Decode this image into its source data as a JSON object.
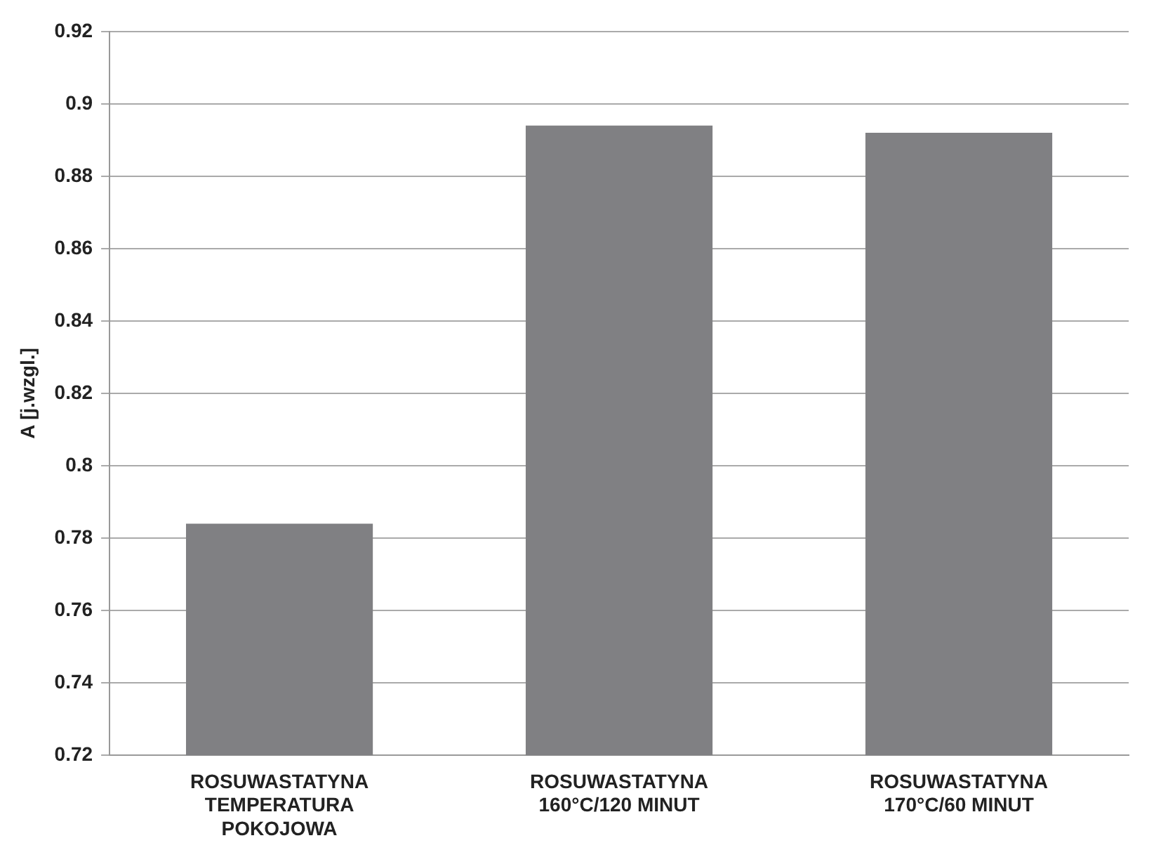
{
  "chart_data": {
    "type": "bar",
    "ylabel": "A [j.wzgl.]",
    "categories": [
      "ROSUWASTATYNA\nTEMPERATURA\nPOKOJOWA",
      "ROSUWASTATYNA\n160°C/120 MINUT",
      "ROSUWASTATYNA\n170°C/60 MINUT"
    ],
    "values": [
      0.784,
      0.894,
      0.892
    ],
    "color": "#808083",
    "ylim": [
      0.72,
      0.92
    ],
    "yticks": [
      0.72,
      0.74,
      0.76,
      0.78,
      0.8,
      0.82,
      0.84,
      0.86,
      0.88,
      0.9,
      0.92
    ],
    "grid": "y",
    "legend": false
  }
}
